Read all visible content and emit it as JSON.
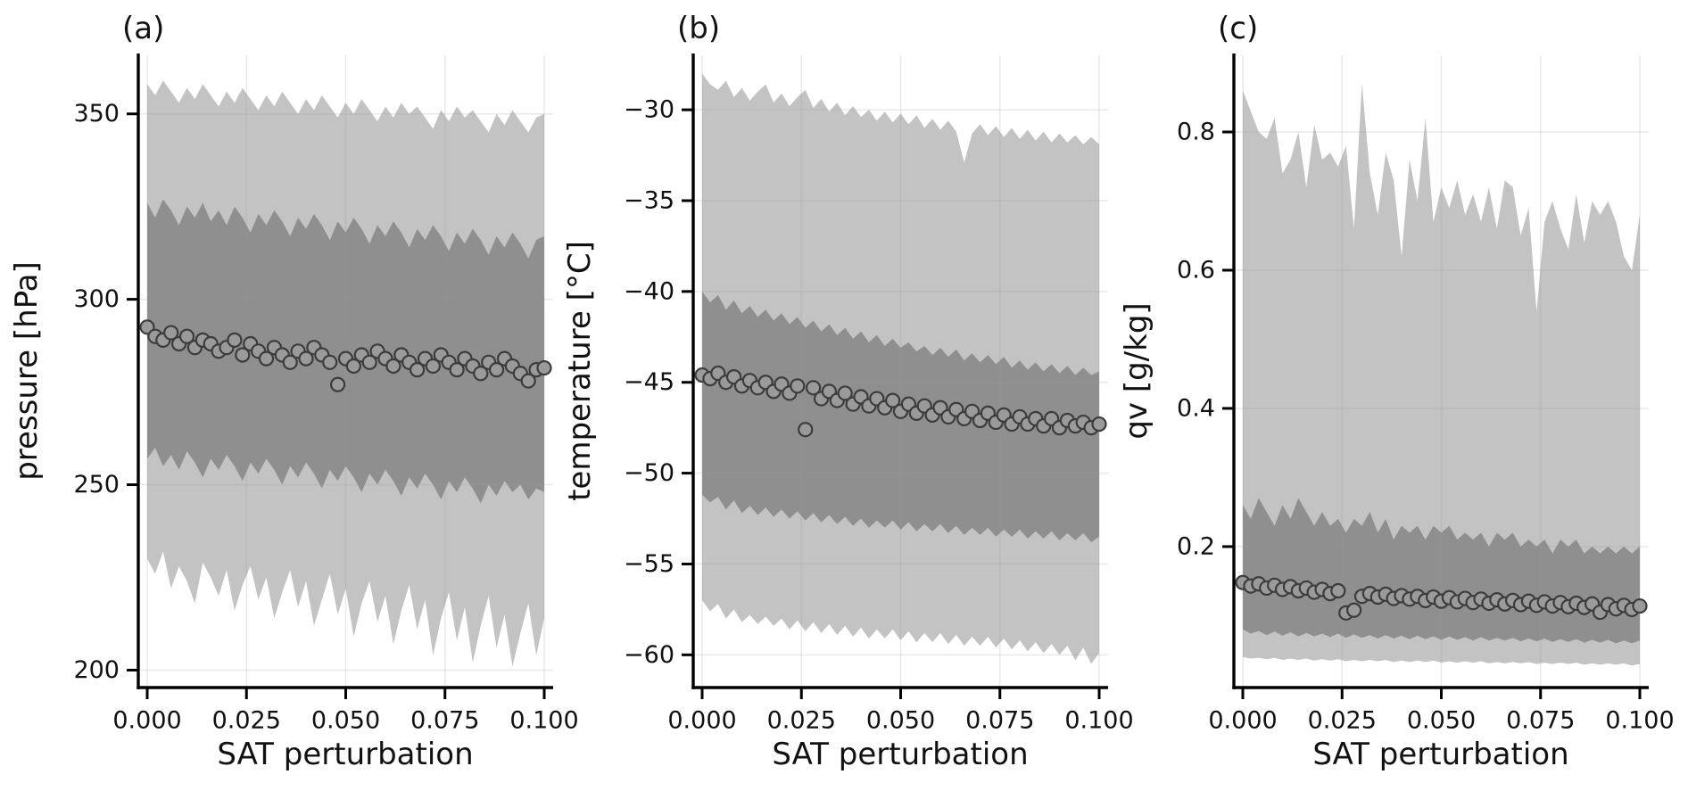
{
  "figure": {
    "background": "#ffffff",
    "text_color": "#111111",
    "outer_band_color": "#c3c3c3",
    "inner_band_color": "#8f8f8f",
    "marker_fill": "#9a9a9a",
    "marker_edge": "#3c3c3c",
    "grid_color": "#9a9a9a",
    "spine_color": "#000000"
  },
  "chart_data": [
    {
      "type": "scatter",
      "title": "(a)",
      "xlabel": "SAT perturbation",
      "ylabel": "pressure [hPa]",
      "xlim": [
        -0.00225,
        0.10225
      ],
      "ylim": [
        195.3,
        365.8
      ],
      "xticks": [
        0.0,
        0.025,
        0.05,
        0.075,
        0.1
      ],
      "xtick_labels": [
        "0.000",
        "0.025",
        "0.050",
        "0.075",
        "0.100"
      ],
      "yticks": [
        200,
        250,
        300,
        350
      ],
      "ytick_labels": [
        "200",
        "250",
        "300",
        "350"
      ],
      "grid": true,
      "legend": "none",
      "x": [
        0.0,
        0.002,
        0.004,
        0.006,
        0.008,
        0.01,
        0.012,
        0.014,
        0.016,
        0.018,
        0.02,
        0.022,
        0.024,
        0.026,
        0.028,
        0.03,
        0.032,
        0.034,
        0.036,
        0.038,
        0.04,
        0.042,
        0.044,
        0.046,
        0.048,
        0.05,
        0.052,
        0.054,
        0.056,
        0.058,
        0.06,
        0.062,
        0.064,
        0.066,
        0.068,
        0.07,
        0.072,
        0.074,
        0.076,
        0.078,
        0.08,
        0.082,
        0.084,
        0.086,
        0.088,
        0.09,
        0.092,
        0.094,
        0.096,
        0.098,
        0.1
      ],
      "series": [
        {
          "name": "outer band",
          "kind": "band",
          "upper": [
            358,
            355,
            359,
            356,
            353,
            357,
            354,
            358,
            355,
            352,
            356,
            353,
            357,
            354,
            351,
            355,
            352,
            356,
            353,
            350,
            354,
            351,
            355,
            352,
            349,
            353,
            350,
            354,
            351,
            348,
            352,
            349,
            353,
            350,
            352,
            349,
            346,
            351,
            348,
            352,
            349,
            351,
            348,
            345,
            350,
            347,
            351,
            348,
            345,
            349,
            350
          ],
          "lower": [
            230,
            226,
            232,
            222,
            228,
            224,
            218,
            229,
            225,
            220,
            227,
            216,
            223,
            228,
            219,
            225,
            214,
            221,
            227,
            217,
            224,
            212,
            219,
            226,
            215,
            222,
            209,
            218,
            224,
            213,
            220,
            207,
            216,
            223,
            211,
            219,
            204,
            214,
            221,
            208,
            217,
            202,
            212,
            220,
            206,
            215,
            201,
            210,
            218,
            204,
            214
          ]
        },
        {
          "name": "inner band",
          "kind": "band",
          "upper": [
            326,
            322,
            327,
            324,
            320,
            325,
            322,
            326,
            321,
            324,
            320,
            325,
            322,
            318,
            323,
            320,
            324,
            321,
            317,
            322,
            319,
            323,
            320,
            316,
            321,
            318,
            322,
            319,
            315,
            320,
            317,
            321,
            318,
            314,
            319,
            316,
            320,
            317,
            313,
            318,
            315,
            319,
            316,
            312,
            317,
            314,
            318,
            315,
            311,
            316,
            317
          ],
          "lower": [
            257,
            260,
            255,
            258,
            254,
            259,
            256,
            252,
            257,
            254,
            258,
            255,
            251,
            256,
            253,
            257,
            254,
            250,
            255,
            252,
            256,
            253,
            249,
            254,
            251,
            255,
            252,
            248,
            253,
            250,
            254,
            251,
            247,
            252,
            249,
            253,
            250,
            246,
            251,
            248,
            252,
            249,
            245,
            250,
            247,
            251,
            248,
            250,
            246,
            249,
            248
          ]
        },
        {
          "name": "median",
          "kind": "scatter",
          "values": [
            292.5,
            290,
            289,
            291,
            288,
            290,
            287,
            289,
            288,
            286,
            287,
            289,
            285,
            288,
            286,
            284,
            287,
            285,
            283,
            286,
            284,
            287,
            285,
            283,
            277,
            284,
            282,
            285,
            283,
            286,
            284,
            282,
            285,
            283,
            281,
            284,
            282,
            285,
            283,
            281,
            284,
            282,
            280,
            283,
            281,
            284,
            282,
            280,
            278,
            281,
            281.5
          ]
        }
      ]
    },
    {
      "type": "scatter",
      "title": "(b)",
      "xlabel": "SAT perturbation",
      "ylabel": "temperature [°C]",
      "xlim": [
        -0.00225,
        0.10225
      ],
      "ylim": [
        -61.8,
        -27.0
      ],
      "xticks": [
        0.0,
        0.025,
        0.05,
        0.075,
        0.1
      ],
      "xtick_labels": [
        "0.000",
        "0.025",
        "0.050",
        "0.075",
        "0.100"
      ],
      "yticks": [
        -30,
        -35,
        -40,
        -45,
        -50,
        -55,
        -60
      ],
      "ytick_labels": [
        "−30",
        "−35",
        "−40",
        "−45",
        "−50",
        "−55",
        "−60"
      ],
      "grid": true,
      "legend": "none",
      "x": [
        0.0,
        0.002,
        0.004,
        0.006,
        0.008,
        0.01,
        0.012,
        0.014,
        0.016,
        0.018,
        0.02,
        0.022,
        0.024,
        0.026,
        0.028,
        0.03,
        0.032,
        0.034,
        0.036,
        0.038,
        0.04,
        0.042,
        0.044,
        0.046,
        0.048,
        0.05,
        0.052,
        0.054,
        0.056,
        0.058,
        0.06,
        0.062,
        0.064,
        0.066,
        0.068,
        0.07,
        0.072,
        0.074,
        0.076,
        0.078,
        0.08,
        0.082,
        0.084,
        0.086,
        0.088,
        0.09,
        0.092,
        0.094,
        0.096,
        0.098,
        0.1
      ],
      "series": [
        {
          "name": "outer band",
          "kind": "band",
          "upper": [
            -28.0,
            -28.6,
            -28.9,
            -28.4,
            -29.3,
            -28.8,
            -29.5,
            -29.0,
            -28.6,
            -29.6,
            -29.1,
            -29.8,
            -29.3,
            -28.9,
            -29.9,
            -29.4,
            -30.1,
            -29.6,
            -30.3,
            -29.8,
            -30.4,
            -30.0,
            -30.6,
            -30.1,
            -30.7,
            -30.2,
            -30.8,
            -30.3,
            -31.0,
            -30.5,
            -31.1,
            -30.6,
            -31.2,
            -32.9,
            -31.3,
            -30.8,
            -31.4,
            -30.9,
            -31.5,
            -31.0,
            -31.6,
            -31.1,
            -31.7,
            -31.2,
            -31.8,
            -31.3,
            -31.8,
            -31.4,
            -31.9,
            -31.5,
            -31.9
          ],
          "lower": [
            -57.0,
            -57.6,
            -57.2,
            -58.0,
            -57.5,
            -58.2,
            -57.8,
            -58.3,
            -57.9,
            -58.4,
            -58.0,
            -58.6,
            -58.1,
            -58.7,
            -58.2,
            -58.8,
            -58.3,
            -58.9,
            -58.4,
            -59.0,
            -58.5,
            -59.1,
            -58.6,
            -59.1,
            -58.6,
            -59.2,
            -58.7,
            -59.3,
            -58.8,
            -59.3,
            -58.8,
            -59.4,
            -58.9,
            -59.5,
            -59.0,
            -59.5,
            -59.0,
            -59.6,
            -59.1,
            -59.7,
            -59.2,
            -59.8,
            -59.3,
            -59.9,
            -59.4,
            -60.0,
            -59.5,
            -60.3,
            -59.6,
            -60.5,
            -59.9
          ]
        },
        {
          "name": "inner band",
          "kind": "band",
          "upper": [
            -40.0,
            -40.6,
            -40.2,
            -41.0,
            -40.5,
            -41.2,
            -40.8,
            -41.4,
            -41.0,
            -41.6,
            -41.2,
            -41.8,
            -41.4,
            -42.0,
            -41.6,
            -42.2,
            -41.8,
            -42.4,
            -42.0,
            -42.6,
            -42.2,
            -42.8,
            -42.4,
            -43.0,
            -42.6,
            -43.1,
            -42.8,
            -43.3,
            -43.0,
            -43.5,
            -43.1,
            -43.6,
            -43.2,
            -43.8,
            -43.4,
            -43.9,
            -43.5,
            -44.0,
            -43.6,
            -44.2,
            -43.8,
            -44.3,
            -43.9,
            -44.4,
            -44.0,
            -44.5,
            -44.1,
            -44.6,
            -44.2,
            -44.6,
            -44.4
          ],
          "lower": [
            -51.2,
            -51.6,
            -51.3,
            -52.0,
            -51.5,
            -52.2,
            -51.8,
            -52.3,
            -51.9,
            -52.4,
            -52.0,
            -52.5,
            -52.1,
            -52.6,
            -52.2,
            -52.7,
            -52.3,
            -52.8,
            -52.4,
            -52.9,
            -52.5,
            -53.0,
            -52.6,
            -53.0,
            -52.6,
            -53.1,
            -52.7,
            -53.2,
            -52.8,
            -53.2,
            -52.8,
            -53.3,
            -52.9,
            -53.4,
            -53.0,
            -53.4,
            -53.0,
            -53.5,
            -53.1,
            -53.5,
            -53.1,
            -53.6,
            -53.2,
            -53.6,
            -53.2,
            -53.7,
            -53.3,
            -53.7,
            -53.3,
            -53.8,
            -53.5
          ]
        },
        {
          "name": "median",
          "kind": "scatter",
          "values": [
            -44.6,
            -44.8,
            -44.5,
            -45.0,
            -44.7,
            -45.2,
            -44.9,
            -45.3,
            -45.0,
            -45.5,
            -45.1,
            -45.6,
            -45.2,
            -47.6,
            -45.3,
            -45.9,
            -45.5,
            -46.0,
            -45.6,
            -46.2,
            -45.8,
            -46.3,
            -45.9,
            -46.4,
            -46.0,
            -46.6,
            -46.2,
            -46.7,
            -46.3,
            -46.8,
            -46.4,
            -46.9,
            -46.5,
            -47.0,
            -46.6,
            -47.1,
            -46.7,
            -47.2,
            -46.8,
            -47.3,
            -46.9,
            -47.3,
            -47.0,
            -47.4,
            -47.0,
            -47.5,
            -47.1,
            -47.4,
            -47.2,
            -47.5,
            -47.3
          ]
        }
      ]
    },
    {
      "type": "scatter",
      "title": "(c)",
      "xlabel": "SAT perturbation",
      "ylabel": "qv [g/kg]",
      "xlim": [
        -0.00225,
        0.10225
      ],
      "ylim": [
        -0.004,
        0.911
      ],
      "xticks": [
        0.0,
        0.025,
        0.05,
        0.075,
        0.1
      ],
      "xtick_labels": [
        "0.000",
        "0.025",
        "0.050",
        "0.075",
        "0.100"
      ],
      "yticks": [
        0.2,
        0.4,
        0.6,
        0.8
      ],
      "ytick_labels": [
        "0.2",
        "0.4",
        "0.6",
        "0.8"
      ],
      "grid": true,
      "legend": "none",
      "x": [
        0.0,
        0.002,
        0.004,
        0.006,
        0.008,
        0.01,
        0.012,
        0.014,
        0.016,
        0.018,
        0.02,
        0.022,
        0.024,
        0.026,
        0.028,
        0.03,
        0.032,
        0.034,
        0.036,
        0.038,
        0.04,
        0.042,
        0.044,
        0.046,
        0.048,
        0.05,
        0.052,
        0.054,
        0.056,
        0.058,
        0.06,
        0.062,
        0.064,
        0.066,
        0.068,
        0.07,
        0.072,
        0.074,
        0.076,
        0.078,
        0.08,
        0.082,
        0.084,
        0.086,
        0.088,
        0.09,
        0.092,
        0.094,
        0.096,
        0.098,
        0.1
      ],
      "series": [
        {
          "name": "outer band",
          "kind": "band",
          "upper": [
            0.86,
            0.83,
            0.8,
            0.79,
            0.82,
            0.74,
            0.76,
            0.8,
            0.72,
            0.81,
            0.76,
            0.77,
            0.75,
            0.78,
            0.66,
            0.87,
            0.74,
            0.68,
            0.77,
            0.73,
            0.62,
            0.76,
            0.7,
            0.82,
            0.67,
            0.72,
            0.69,
            0.73,
            0.68,
            0.71,
            0.67,
            0.72,
            0.66,
            0.73,
            0.72,
            0.65,
            0.69,
            0.54,
            0.67,
            0.7,
            0.66,
            0.63,
            0.71,
            0.64,
            0.7,
            0.68,
            0.7,
            0.67,
            0.62,
            0.6,
            0.68
          ],
          "lower": [
            0.04,
            0.038,
            0.039,
            0.037,
            0.039,
            0.036,
            0.038,
            0.036,
            0.038,
            0.035,
            0.037,
            0.035,
            0.037,
            0.034,
            0.036,
            0.034,
            0.036,
            0.034,
            0.036,
            0.033,
            0.035,
            0.033,
            0.035,
            0.033,
            0.035,
            0.032,
            0.034,
            0.032,
            0.034,
            0.032,
            0.034,
            0.031,
            0.033,
            0.031,
            0.033,
            0.031,
            0.033,
            0.03,
            0.032,
            0.03,
            0.032,
            0.03,
            0.032,
            0.029,
            0.031,
            0.029,
            0.031,
            0.029,
            0.031,
            0.028,
            0.03
          ]
        },
        {
          "name": "inner band",
          "kind": "band",
          "upper": [
            0.26,
            0.24,
            0.27,
            0.25,
            0.23,
            0.26,
            0.24,
            0.27,
            0.25,
            0.23,
            0.25,
            0.23,
            0.24,
            0.22,
            0.24,
            0.23,
            0.25,
            0.22,
            0.24,
            0.21,
            0.23,
            0.22,
            0.23,
            0.21,
            0.23,
            0.22,
            0.23,
            0.21,
            0.22,
            0.21,
            0.22,
            0.2,
            0.22,
            0.21,
            0.22,
            0.2,
            0.21,
            0.2,
            0.21,
            0.19,
            0.21,
            0.2,
            0.21,
            0.19,
            0.2,
            0.19,
            0.2,
            0.19,
            0.2,
            0.19,
            0.2
          ],
          "lower": [
            0.08,
            0.074,
            0.078,
            0.072,
            0.077,
            0.071,
            0.076,
            0.07,
            0.075,
            0.07,
            0.074,
            0.069,
            0.074,
            0.068,
            0.073,
            0.068,
            0.072,
            0.067,
            0.072,
            0.067,
            0.071,
            0.066,
            0.071,
            0.066,
            0.07,
            0.065,
            0.07,
            0.065,
            0.069,
            0.064,
            0.069,
            0.064,
            0.068,
            0.064,
            0.068,
            0.063,
            0.067,
            0.063,
            0.067,
            0.062,
            0.066,
            0.062,
            0.066,
            0.061,
            0.065,
            0.061,
            0.065,
            0.06,
            0.064,
            0.06,
            0.064
          ]
        },
        {
          "name": "median",
          "kind": "scatter",
          "values": [
            0.148,
            0.143,
            0.146,
            0.14,
            0.144,
            0.138,
            0.142,
            0.136,
            0.14,
            0.134,
            0.138,
            0.132,
            0.136,
            0.104,
            0.108,
            0.128,
            0.132,
            0.127,
            0.131,
            0.125,
            0.129,
            0.124,
            0.128,
            0.122,
            0.127,
            0.121,
            0.126,
            0.12,
            0.125,
            0.119,
            0.124,
            0.118,
            0.123,
            0.117,
            0.122,
            0.116,
            0.121,
            0.115,
            0.12,
            0.114,
            0.119,
            0.113,
            0.118,
            0.112,
            0.117,
            0.105,
            0.116,
            0.11,
            0.115,
            0.109,
            0.114
          ]
        }
      ]
    }
  ]
}
